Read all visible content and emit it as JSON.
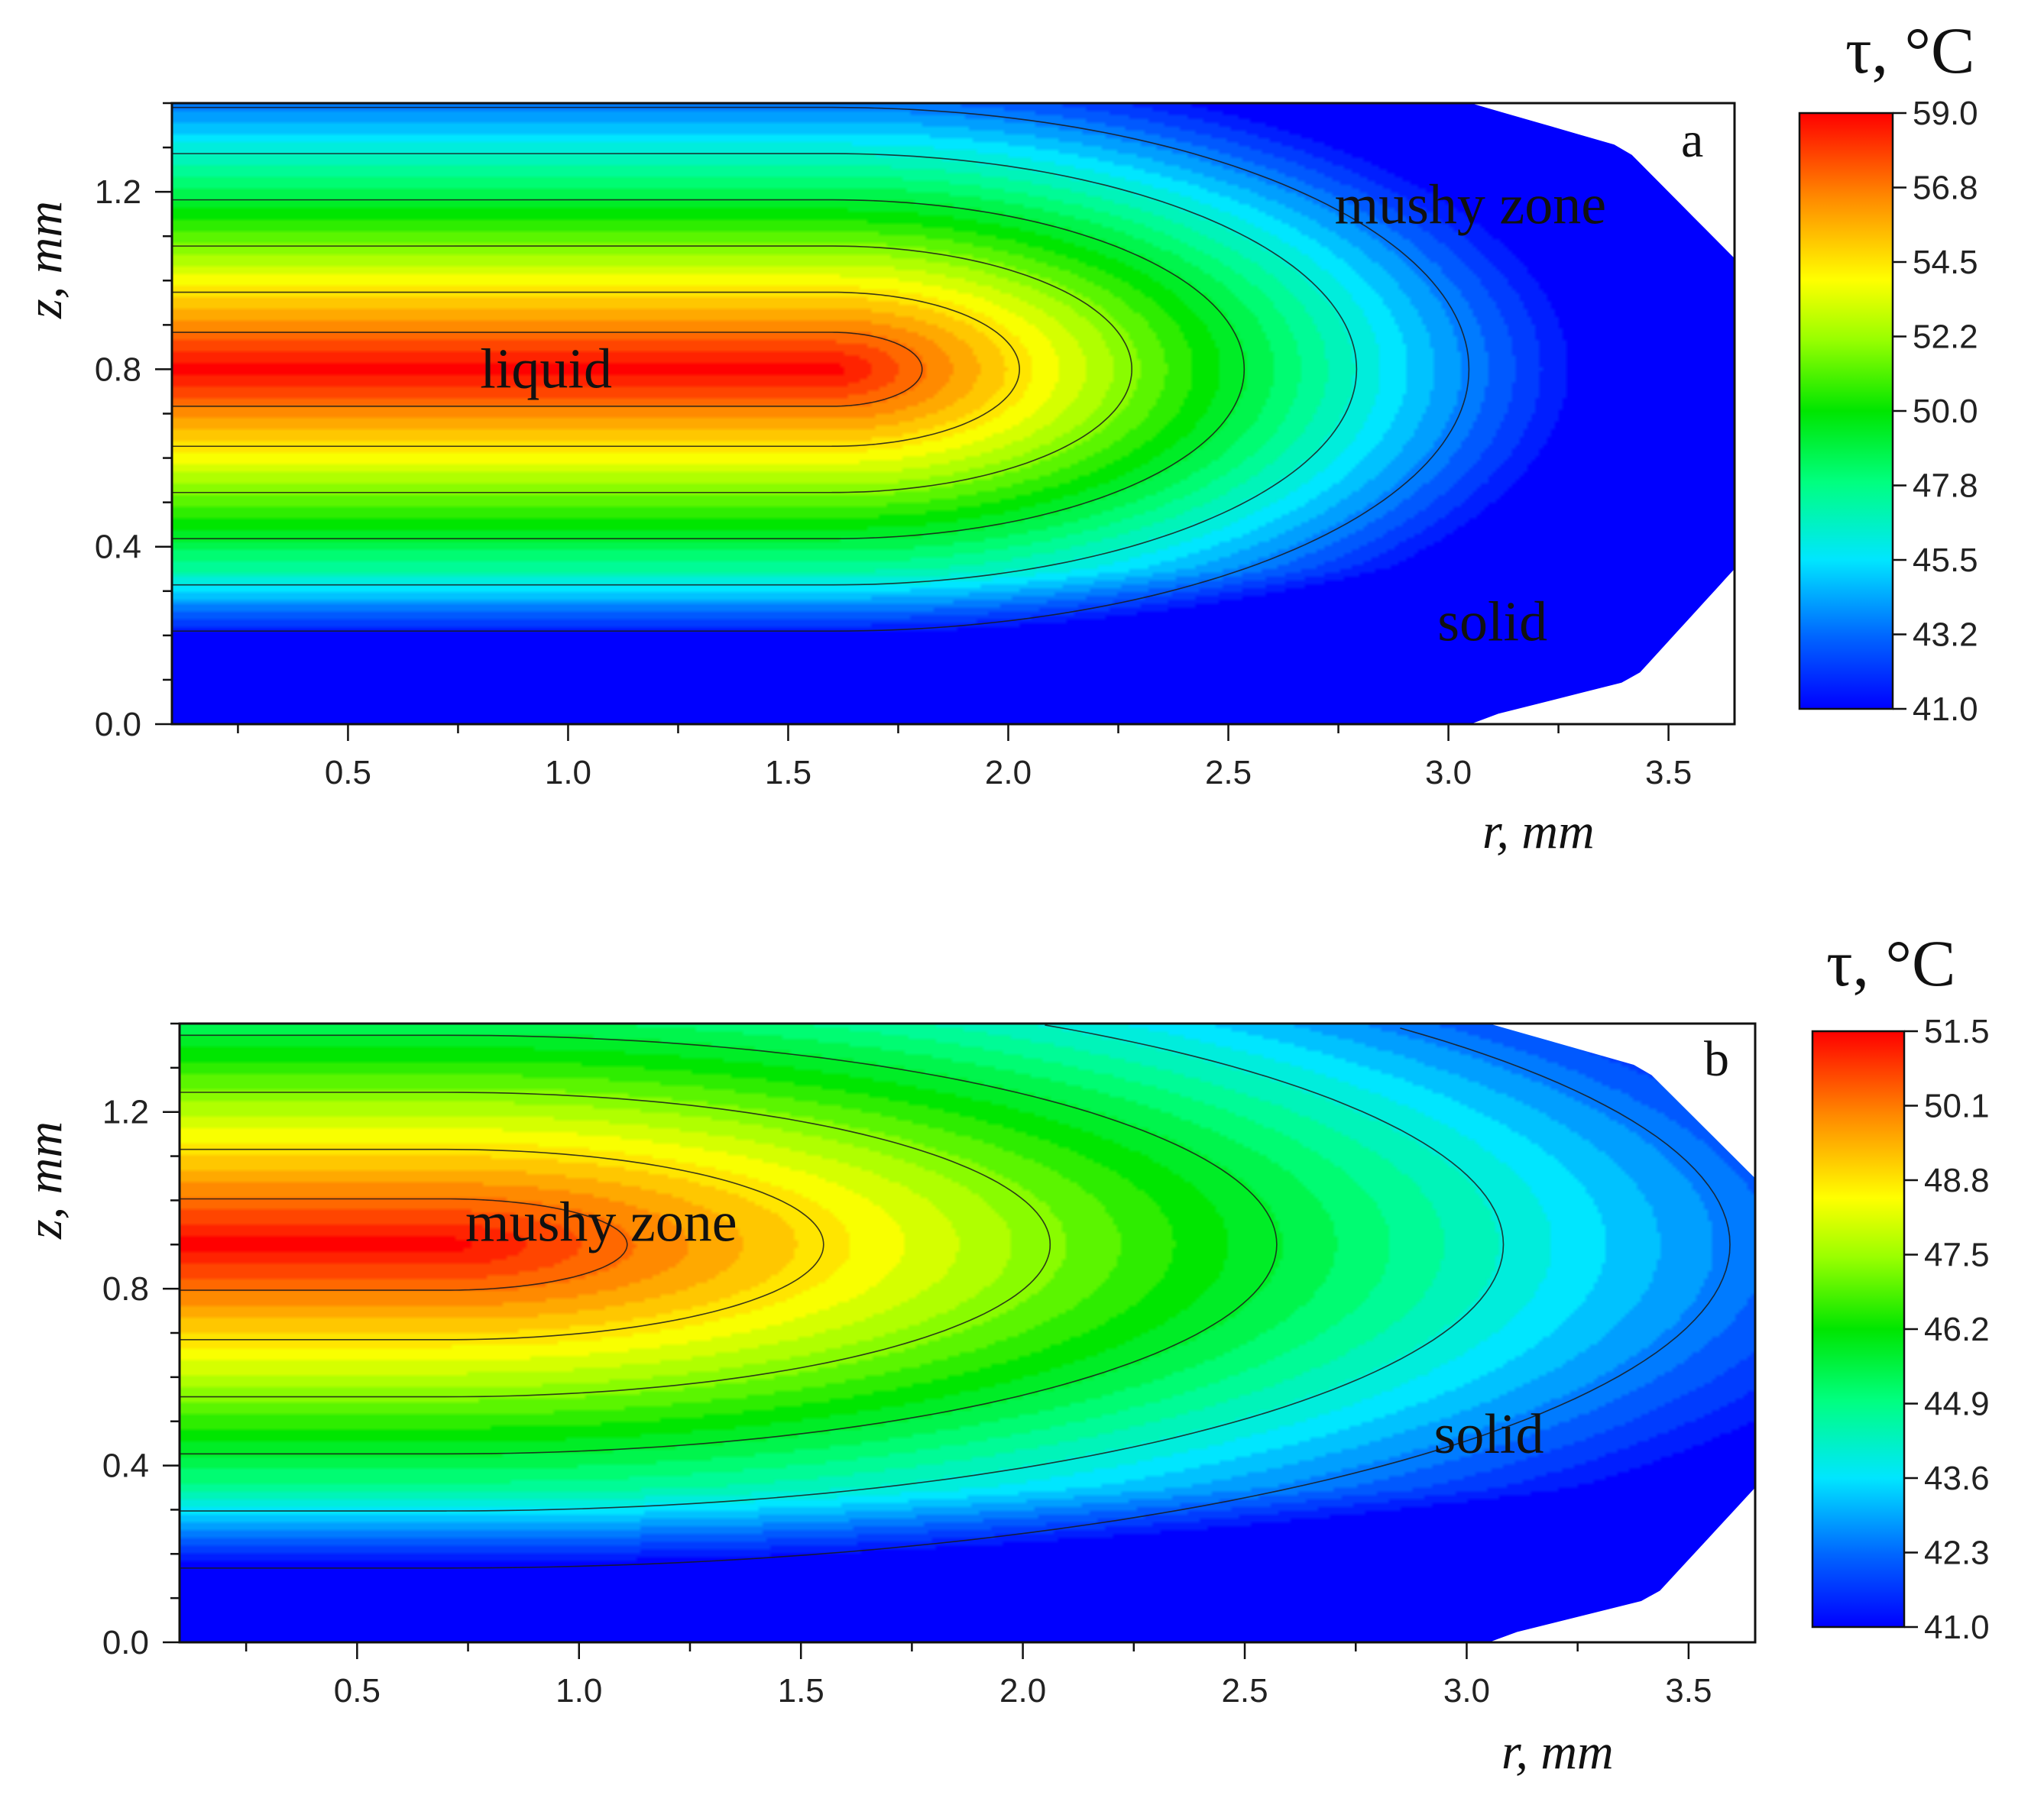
{
  "chart_data": [
    {
      "type": "heatmap",
      "panel": "a",
      "xlabel": "r, mm",
      "ylabel": "z, mm",
      "xlim": [
        0.1,
        3.65
      ],
      "ylim": [
        0.0,
        1.4
      ],
      "xticks": [
        "0.5",
        "1.0",
        "1.5",
        "2.0",
        "2.5",
        "3.0",
        "3.5"
      ],
      "yticks": [
        "0.0",
        "0.4",
        "0.8",
        "1.2"
      ],
      "colorbar": {
        "title": "τ, °C",
        "min": 41.0,
        "max": 59.0,
        "ticks": [
          "41.0",
          "43.2",
          "45.5",
          "47.8",
          "50.0",
          "52.2",
          "54.5",
          "56.8",
          "59.0"
        ]
      },
      "field": {
        "max_center_r": 1.6,
        "max_center_z": 0.8,
        "r_extent": 2.35,
        "z_half_width": 0.5
      },
      "annotations": [
        {
          "text": "liquid",
          "r": 0.95,
          "z": 0.8
        },
        {
          "text": "mushy zone",
          "r": 3.05,
          "z": 1.17
        },
        {
          "text": "solid",
          "r": 3.1,
          "z": 0.23
        }
      ]
    },
    {
      "type": "heatmap",
      "panel": "b",
      "xlabel": "r, mm",
      "ylabel": "z, mm",
      "xlim": [
        0.1,
        3.65
      ],
      "ylim": [
        0.0,
        1.4
      ],
      "xticks": [
        "0.5",
        "1.0",
        "1.5",
        "2.0",
        "2.5",
        "3.0",
        "3.5"
      ],
      "yticks": [
        "0.0",
        "0.4",
        "0.8",
        "1.2"
      ],
      "colorbar": {
        "title": "τ, °C",
        "min": 41.0,
        "max": 51.5,
        "ticks": [
          "41.0",
          "42.3",
          "43.6",
          "44.9",
          "46.2",
          "47.5",
          "48.8",
          "50.1",
          "51.5"
        ]
      },
      "field": {
        "max_center_r": 0.7,
        "max_center_z": 0.9,
        "r_extent": 3.0,
        "z_half_width": 0.62
      },
      "annotations": [
        {
          "text": "mushy zone",
          "r": 1.05,
          "z": 0.95
        },
        {
          "text": "solid",
          "r": 3.05,
          "z": 0.47
        }
      ]
    }
  ]
}
